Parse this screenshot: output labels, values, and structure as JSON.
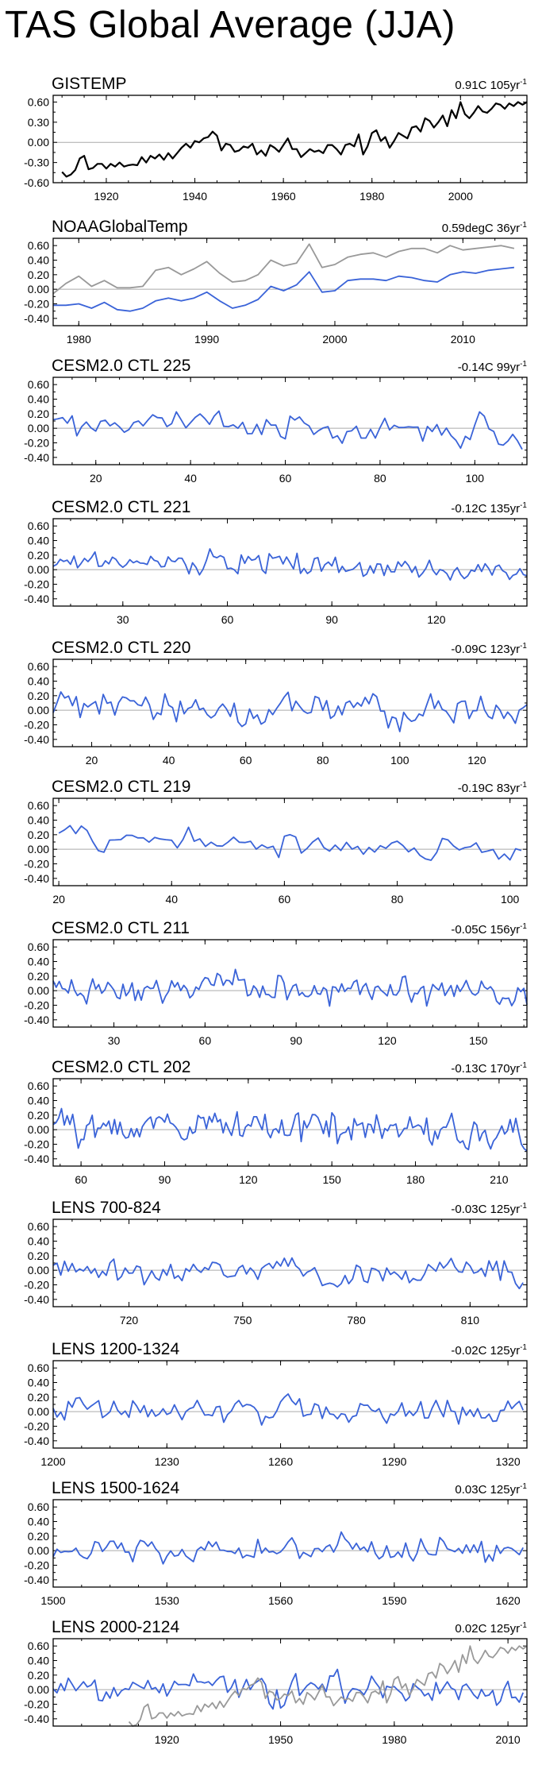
{
  "title": "TAS Global Average (JJA)",
  "colors": {
    "primary": "#3a63d8",
    "secondary": "#999999",
    "gistemp": "#000000",
    "zero_line": "#aaaaaa"
  },
  "chart_data": [
    {
      "type": "line",
      "name": "GISTEMP",
      "trend": "0.91C 105yr",
      "trend_sup": "-1",
      "ylim": [
        -0.6,
        0.7
      ],
      "yticks": [
        -0.6,
        -0.3,
        0.0,
        0.3,
        0.6
      ],
      "ytick_labels": [
        "-0.60",
        "-0.30",
        "0.00",
        "0.30",
        "0.60"
      ],
      "xlim": [
        1908,
        2015
      ],
      "xticks": [
        1920,
        1940,
        1960,
        1980,
        2000
      ],
      "series": [
        {
          "color": "#000000",
          "x_start": 1910,
          "values": [
            -0.44,
            -0.51,
            -0.48,
            -0.41,
            -0.24,
            -0.2,
            -0.4,
            -0.38,
            -0.32,
            -0.32,
            -0.39,
            -0.32,
            -0.36,
            -0.3,
            -0.36,
            -0.34,
            -0.33,
            -0.34,
            -0.22,
            -0.3,
            -0.2,
            -0.24,
            -0.18,
            -0.26,
            -0.16,
            -0.24,
            -0.16,
            -0.08,
            -0.02,
            -0.08,
            0.02,
            0.0,
            0.06,
            0.08,
            0.16,
            0.1,
            -0.12,
            -0.02,
            -0.04,
            -0.14,
            -0.12,
            -0.06,
            -0.08,
            -0.02,
            -0.18,
            -0.12,
            -0.2,
            -0.04,
            -0.08,
            -0.14,
            -0.04,
            0.06,
            -0.1,
            -0.1,
            -0.22,
            -0.16,
            -0.1,
            -0.14,
            -0.12,
            -0.16,
            -0.04,
            -0.04,
            -0.1,
            -0.18,
            -0.04,
            -0.02,
            -0.06,
            0.12,
            -0.18,
            -0.06,
            0.14,
            0.18,
            0.02,
            0.08,
            -0.08,
            0.02,
            0.14,
            0.1,
            0.06,
            0.22,
            0.24,
            0.16,
            0.36,
            0.32,
            0.22,
            0.3,
            0.4,
            0.24,
            0.48,
            0.36,
            0.6,
            0.42,
            0.36,
            0.44,
            0.54,
            0.46,
            0.44,
            0.5,
            0.58,
            0.56,
            0.5,
            0.58,
            0.54,
            0.6,
            0.56,
            0.6
          ]
        }
      ]
    },
    {
      "type": "line",
      "name": "NOAAGlobalTemp",
      "trend": "0.59degC 36yr",
      "trend_sup": "-1",
      "ylim": [
        -0.5,
        0.7
      ],
      "yticks": [
        -0.4,
        -0.2,
        0.0,
        0.2,
        0.4,
        0.6
      ],
      "ytick_labels": [
        "-0.40",
        "-0.20",
        "0.00",
        "0.20",
        "0.40",
        "0.60"
      ],
      "xlim": [
        1978,
        2015
      ],
      "xticks": [
        1980,
        1990,
        2000,
        2010
      ],
      "series": [
        {
          "color": "#999999",
          "x_start": 1978,
          "values": [
            -0.06,
            0.08,
            0.18,
            0.04,
            0.12,
            0.02,
            0.02,
            0.04,
            0.26,
            0.3,
            0.2,
            0.28,
            0.38,
            0.22,
            0.1,
            0.12,
            0.2,
            0.4,
            0.32,
            0.36,
            0.62,
            0.3,
            0.34,
            0.44,
            0.48,
            0.5,
            0.44,
            0.52,
            0.56,
            0.56,
            0.5,
            0.6,
            0.54,
            0.56,
            0.58,
            0.6,
            0.56
          ]
        },
        {
          "color": "#3a63d8",
          "x_start": 1978,
          "values": [
            -0.22,
            -0.22,
            -0.2,
            -0.26,
            -0.18,
            -0.28,
            -0.3,
            -0.26,
            -0.16,
            -0.12,
            -0.16,
            -0.12,
            -0.04,
            -0.16,
            -0.26,
            -0.22,
            -0.14,
            0.04,
            -0.02,
            0.06,
            0.24,
            -0.04,
            -0.02,
            0.12,
            0.14,
            0.14,
            0.12,
            0.18,
            0.16,
            0.12,
            0.1,
            0.2,
            0.24,
            0.22,
            0.26,
            0.28,
            0.3
          ]
        }
      ]
    },
    {
      "type": "line",
      "name": "CESM2.0 CTL 225",
      "trend": "-0.14C 99yr",
      "trend_sup": "-1",
      "ylim": [
        -0.5,
        0.7
      ],
      "yticks": [
        -0.4,
        -0.2,
        0.0,
        0.2,
        0.4,
        0.6
      ],
      "ytick_labels": [
        "-0.40",
        "-0.20",
        "0.00",
        "0.20",
        "0.40",
        "0.60"
      ],
      "xlim": [
        11,
        111
      ],
      "xticks": [
        20,
        40,
        60,
        80,
        100
      ],
      "series": [
        {
          "color": "#3a63d8",
          "x_start": 11,
          "seed": 225,
          "len": 100,
          "offset": 0.12,
          "slope": -0.0016,
          "noise": 0.09
        }
      ]
    },
    {
      "type": "line",
      "name": "CESM2.0 CTL 221",
      "trend": "-0.12C 135yr",
      "trend_sup": "-1",
      "ylim": [
        -0.5,
        0.7
      ],
      "yticks": [
        -0.4,
        -0.2,
        0.0,
        0.2,
        0.4,
        0.6
      ],
      "ytick_labels": [
        "-0.40",
        "-0.20",
        "0.00",
        "0.20",
        "0.40",
        "0.60"
      ],
      "xlim": [
        10,
        146
      ],
      "xticks": [
        30,
        60,
        90,
        120
      ],
      "series": [
        {
          "color": "#3a63d8",
          "x_start": 10,
          "seed": 221,
          "len": 137,
          "offset": 0.12,
          "slope": -0.0012,
          "noise": 0.08
        }
      ]
    },
    {
      "type": "line",
      "name": "CESM2.0 CTL 220",
      "trend": "-0.09C 123yr",
      "trend_sup": "-1",
      "ylim": [
        -0.5,
        0.7
      ],
      "yticks": [
        -0.4,
        -0.2,
        0.0,
        0.2,
        0.4,
        0.6
      ],
      "ytick_labels": [
        "-0.40",
        "-0.20",
        "0.00",
        "0.20",
        "0.40",
        "0.60"
      ],
      "xlim": [
        10,
        133
      ],
      "xticks": [
        20,
        40,
        60,
        80,
        100,
        120
      ],
      "series": [
        {
          "color": "#3a63d8",
          "x_start": 10,
          "seed": 220,
          "len": 124,
          "offset": 0.08,
          "slope": -0.0008,
          "noise": 0.11
        }
      ]
    },
    {
      "type": "line",
      "name": "CESM2.0 CTL 219",
      "trend": "-0.19C 83yr",
      "trend_sup": "-1",
      "ylim": [
        -0.5,
        0.7
      ],
      "yticks": [
        -0.4,
        -0.2,
        0.0,
        0.2,
        0.4,
        0.6
      ],
      "ytick_labels": [
        "-0.40",
        "-0.20",
        "0.00",
        "0.20",
        "0.40",
        "0.60"
      ],
      "xlim": [
        19,
        103
      ],
      "xticks": [
        20,
        40,
        60,
        80,
        100
      ],
      "series": [
        {
          "color": "#3a63d8",
          "x_start": 20,
          "seed": 219,
          "len": 83,
          "offset": 0.16,
          "slope": -0.0022,
          "noise": 0.08
        }
      ]
    },
    {
      "type": "line",
      "name": "CESM2.0 CTL 211",
      "trend": "-0.05C 156yr",
      "trend_sup": "-1",
      "ylim": [
        -0.5,
        0.7
      ],
      "yticks": [
        -0.4,
        -0.2,
        0.0,
        0.2,
        0.4,
        0.6
      ],
      "ytick_labels": [
        "-0.40",
        "-0.20",
        "0.00",
        "0.20",
        "0.40",
        "0.60"
      ],
      "xlim": [
        10,
        166
      ],
      "xticks": [
        30,
        60,
        90,
        120,
        150
      ],
      "series": [
        {
          "color": "#3a63d8",
          "x_start": 10,
          "seed": 211,
          "len": 157,
          "offset": 0.05,
          "slope": -0.0004,
          "noise": 0.09
        }
      ]
    },
    {
      "type": "line",
      "name": "CESM2.0 CTL 202",
      "trend": "-0.13C 170yr",
      "trend_sup": "-1",
      "ylim": [
        -0.5,
        0.7
      ],
      "yticks": [
        -0.4,
        -0.2,
        0.0,
        0.2,
        0.4,
        0.6
      ],
      "ytick_labels": [
        "-0.40",
        "-0.20",
        "0.00",
        "0.20",
        "0.40",
        "0.60"
      ],
      "xlim": [
        50,
        220
      ],
      "xticks": [
        60,
        90,
        120,
        150,
        180,
        210
      ],
      "series": [
        {
          "color": "#3a63d8",
          "x_start": 50,
          "seed": 202,
          "len": 171,
          "offset": 0.1,
          "slope": -0.0009,
          "noise": 0.11
        }
      ]
    },
    {
      "type": "line",
      "name": "LENS 700-824",
      "trend": "-0.03C 125yr",
      "trend_sup": "-1",
      "ylim": [
        -0.5,
        0.7
      ],
      "yticks": [
        -0.4,
        -0.2,
        0.0,
        0.2,
        0.4,
        0.6
      ],
      "ytick_labels": [
        "-0.40",
        "-0.20",
        "0.00",
        "0.20",
        "0.40",
        "0.60"
      ],
      "xlim": [
        700,
        825
      ],
      "xticks": [
        720,
        750,
        780,
        810
      ],
      "series": [
        {
          "color": "#3a63d8",
          "x_start": 700,
          "seed": 700,
          "len": 125,
          "offset": 0.02,
          "slope": -0.00025,
          "noise": 0.09
        }
      ]
    },
    {
      "type": "line",
      "name": "LENS 1200-1324",
      "trend": "-0.02C 125yr",
      "trend_sup": "-1",
      "ylim": [
        -0.5,
        0.7
      ],
      "yticks": [
        -0.4,
        -0.2,
        0.0,
        0.2,
        0.4,
        0.6
      ],
      "ytick_labels": [
        "-0.40",
        "-0.20",
        "0.00",
        "0.20",
        "0.40",
        "0.60"
      ],
      "xlim": [
        1200,
        1325
      ],
      "xticks": [
        1200,
        1230,
        1260,
        1290,
        1320
      ],
      "series": [
        {
          "color": "#3a63d8",
          "x_start": 1200,
          "seed": 1200,
          "len": 125,
          "offset": 0.02,
          "slope": -0.00016,
          "noise": 0.08
        }
      ]
    },
    {
      "type": "line",
      "name": "LENS 1500-1624",
      "trend": "0.03C 125yr",
      "trend_sup": "-1",
      "ylim": [
        -0.5,
        0.7
      ],
      "yticks": [
        -0.4,
        -0.2,
        0.0,
        0.2,
        0.4,
        0.6
      ],
      "ytick_labels": [
        "-0.40",
        "-0.20",
        "0.00",
        "0.20",
        "0.40",
        "0.60"
      ],
      "xlim": [
        1500,
        1625
      ],
      "xticks": [
        1500,
        1530,
        1560,
        1590,
        1620
      ],
      "series": [
        {
          "color": "#3a63d8",
          "x_start": 1500,
          "seed": 1500,
          "len": 125,
          "offset": -0.02,
          "slope": 0.00024,
          "noise": 0.08
        }
      ]
    },
    {
      "type": "line",
      "name": "LENS 2000-2124",
      "trend": "0.02C 125yr",
      "trend_sup": "-1",
      "ylim": [
        -0.5,
        0.7
      ],
      "yticks": [
        -0.4,
        -0.2,
        0.0,
        0.2,
        0.4,
        0.6
      ],
      "ytick_labels": [
        "-0.40",
        "-0.20",
        "0.00",
        "0.20",
        "0.40",
        "0.60"
      ],
      "xlim": [
        1890,
        2015
      ],
      "xticks": [
        1920,
        1950,
        1980,
        2010
      ],
      "series": [
        {
          "color": "#3a63d8",
          "x_start": 1890,
          "seed": 2000,
          "len": 125,
          "offset": 0.0,
          "slope": 0.00016,
          "noise": 0.09
        },
        {
          "color": "#999999",
          "x_start": 1910,
          "values": [
            -0.44,
            -0.51,
            -0.48,
            -0.41,
            -0.24,
            -0.2,
            -0.4,
            -0.38,
            -0.32,
            -0.32,
            -0.39,
            -0.32,
            -0.36,
            -0.3,
            -0.36,
            -0.34,
            -0.33,
            -0.34,
            -0.22,
            -0.3,
            -0.2,
            -0.24,
            -0.18,
            -0.26,
            -0.16,
            -0.24,
            -0.16,
            -0.08,
            -0.02,
            -0.08,
            0.02,
            0.0,
            0.06,
            0.08,
            0.16,
            0.1,
            -0.12,
            -0.02,
            -0.04,
            -0.14,
            -0.12,
            -0.06,
            -0.08,
            -0.02,
            -0.18,
            -0.12,
            -0.2,
            -0.04,
            -0.08,
            -0.14,
            -0.04,
            0.06,
            -0.1,
            -0.1,
            -0.22,
            -0.16,
            -0.1,
            -0.14,
            -0.12,
            -0.16,
            -0.04,
            -0.04,
            -0.1,
            -0.18,
            -0.04,
            -0.02,
            -0.06,
            0.12,
            -0.18,
            -0.06,
            0.14,
            0.18,
            0.02,
            0.08,
            -0.08,
            0.02,
            0.14,
            0.1,
            0.06,
            0.22,
            0.24,
            0.16,
            0.36,
            0.32,
            0.22,
            0.3,
            0.4,
            0.24,
            0.48,
            0.36,
            0.6,
            0.42,
            0.36,
            0.44,
            0.54,
            0.46,
            0.44,
            0.5,
            0.58,
            0.56,
            0.5,
            0.58,
            0.54,
            0.6,
            0.56,
            0.6
          ]
        }
      ]
    }
  ]
}
